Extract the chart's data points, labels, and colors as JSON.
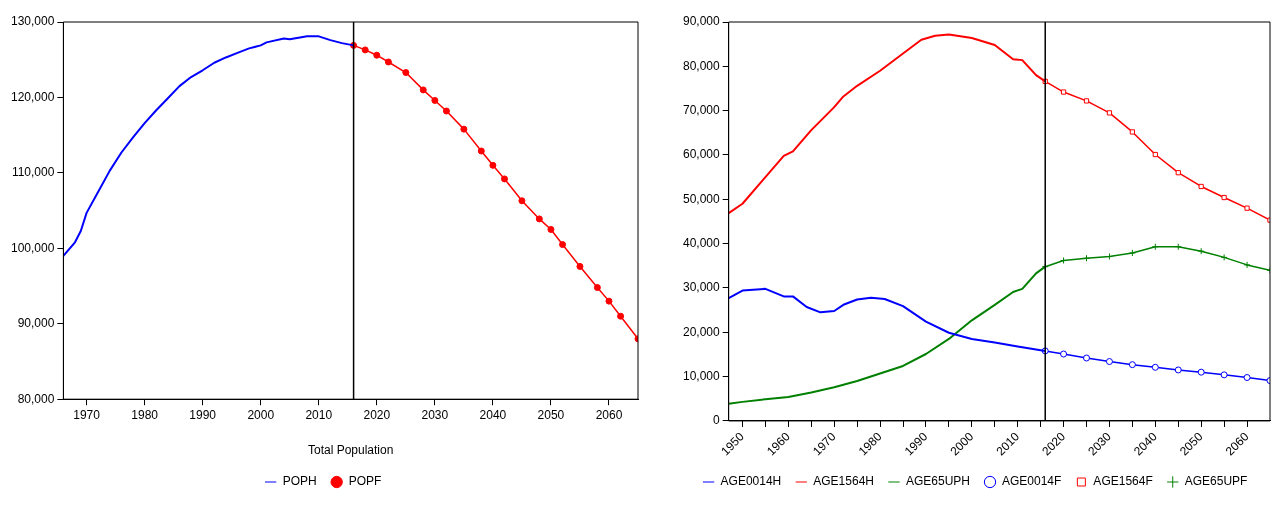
{
  "chart_data": [
    {
      "type": "line",
      "xlabel": "Total Population",
      "xlim": [
        1966,
        2065
      ],
      "xticks": [
        1970,
        1980,
        1990,
        2000,
        2010,
        2020,
        2030,
        2040,
        2050,
        2060
      ],
      "ylim": [
        80000,
        130000
      ],
      "yticks": [
        {
          "value": 80000,
          "label": "80,000"
        },
        {
          "value": 90000,
          "label": "90,000"
        },
        {
          "value": 100000,
          "label": "100,000"
        },
        {
          "value": 110000,
          "label": "110,000"
        },
        {
          "value": 120000,
          "label": "120,000"
        },
        {
          "value": 130000,
          "label": "130,000"
        }
      ],
      "grid": false,
      "legend": "bottom",
      "ref_lines": [
        {
          "axis": "x",
          "value": 2016,
          "color": "#000000"
        }
      ],
      "series": [
        {
          "name": "POPH",
          "color": "#0000ff",
          "marker": "none",
          "x": [
            1966,
            1968,
            1969,
            1970,
            1972,
            1974,
            1976,
            1978,
            1980,
            1982,
            1984,
            1986,
            1988,
            1990,
            1992,
            1994,
            1996,
            1998,
            2000,
            2001,
            2004,
            2005,
            2008,
            2010,
            2012,
            2014,
            2016
          ],
          "values": [
            99000,
            100800,
            102300,
            104700,
            107500,
            110300,
            112700,
            114700,
            116600,
            118300,
            119900,
            121500,
            122700,
            123600,
            124600,
            125300,
            125900,
            126500,
            126900,
            127300,
            127800,
            127700,
            128100,
            128100,
            127600,
            127200,
            126900
          ]
        },
        {
          "name": "POPF",
          "color": "#ff0000",
          "marker": "circle",
          "x": [
            2016,
            2018,
            2020,
            2022,
            2025,
            2028,
            2030,
            2032,
            2035,
            2038,
            2040,
            2042,
            2045,
            2048,
            2050,
            2052,
            2055,
            2058,
            2060,
            2062,
            2065
          ],
          "values": [
            126900,
            126300,
            125600,
            124700,
            123300,
            121000,
            119600,
            118200,
            115800,
            112900,
            111000,
            109200,
            106300,
            103900,
            102500,
            100500,
            97600,
            94800,
            93000,
            91000,
            88000
          ]
        }
      ]
    },
    {
      "type": "line",
      "xlim": [
        1947,
        2065
      ],
      "xticks": [
        1950,
        {
          "value": 1955,
          "label": null
        },
        1960,
        {
          "value": 1965,
          "label": null
        },
        1970,
        {
          "value": 1975,
          "label": null
        },
        1980,
        {
          "value": 1985,
          "label": null
        },
        1990,
        {
          "value": 1995,
          "label": null
        },
        2000,
        {
          "value": 2005,
          "label": null
        },
        2010,
        {
          "value": 2015,
          "label": null
        },
        2020,
        {
          "value": 2025,
          "label": null
        },
        2030,
        {
          "value": 2035,
          "label": null
        },
        2040,
        {
          "value": 2045,
          "label": null
        },
        2050,
        {
          "value": 2055,
          "label": null
        },
        2060
      ],
      "ylim": [
        0,
        90000
      ],
      "yticks": [
        0,
        {
          "value": 10000,
          "label": "10,000"
        },
        {
          "value": 20000,
          "label": "20,000"
        },
        {
          "value": 30000,
          "label": "30,000"
        },
        {
          "value": 40000,
          "label": "40,000"
        },
        {
          "value": 50000,
          "label": "50,000"
        },
        {
          "value": 60000,
          "label": "60,000"
        },
        {
          "value": 70000,
          "label": "70,000"
        },
        {
          "value": 80000,
          "label": "80,000"
        },
        {
          "value": 90000,
          "label": "90,000"
        }
      ],
      "grid": false,
      "legend": "bottom",
      "ref_lines": [
        {
          "axis": "x",
          "value": 2016,
          "color": "#000000"
        }
      ],
      "series": [
        {
          "name": "AGE0014H",
          "color": "#0000ff",
          "marker": "none",
          "x": [
            1947,
            1950,
            1955,
            1959,
            1961,
            1964,
            1967,
            1970,
            1972,
            1975,
            1978,
            1981,
            1985,
            1990,
            1995,
            2000,
            2005,
            2010,
            2016
          ],
          "values": [
            27700,
            29400,
            29800,
            28100,
            28100,
            25700,
            24500,
            24800,
            26200,
            27400,
            27800,
            27500,
            25900,
            22400,
            19900,
            18500,
            17700,
            16800,
            15800
          ]
        },
        {
          "name": "AGE1564H",
          "color": "#ff0000",
          "marker": "none",
          "x": [
            1947,
            1950,
            1955,
            1959,
            1961,
            1965,
            1970,
            1972,
            1975,
            1980,
            1985,
            1989,
            1992,
            1995,
            2000,
            2005,
            2009,
            2011,
            2014,
            2016
          ],
          "values": [
            46900,
            49000,
            55000,
            59800,
            60800,
            65600,
            70800,
            73200,
            75600,
            79000,
            82900,
            86000,
            86900,
            87200,
            86400,
            84800,
            81600,
            81400,
            78000,
            76600
          ]
        },
        {
          "name": "AGE65UPH",
          "color": "#008000",
          "marker": "none",
          "x": [
            1947,
            1950,
            1955,
            1960,
            1965,
            1970,
            1975,
            1980,
            1985,
            1990,
            1995,
            2000,
            2005,
            2009,
            2011,
            2014,
            2016
          ],
          "values": [
            3900,
            4300,
            4900,
            5400,
            6400,
            7600,
            9000,
            10700,
            12400,
            15100,
            18500,
            22700,
            26200,
            29100,
            29800,
            33300,
            34800
          ]
        },
        {
          "name": "AGE0014F",
          "color": "#0000ff",
          "marker": "circle",
          "x": [
            2016,
            2020,
            2025,
            2030,
            2035,
            2040,
            2045,
            2050,
            2055,
            2060,
            2065
          ],
          "values": [
            15800,
            15100,
            14200,
            13400,
            12700,
            12100,
            11500,
            11000,
            10400,
            9800,
            9100
          ]
        },
        {
          "name": "AGE1564F",
          "color": "#ff0000",
          "marker": "square",
          "x": [
            2016,
            2020,
            2025,
            2030,
            2035,
            2040,
            2045,
            2050,
            2055,
            2060,
            2065
          ],
          "values": [
            76600,
            74200,
            72200,
            69500,
            65200,
            60100,
            56000,
            52900,
            50400,
            48000,
            45300
          ]
        },
        {
          "name": "AGE65UPF",
          "color": "#008000",
          "marker": "cross",
          "x": [
            2016,
            2020,
            2025,
            2030,
            2035,
            2040,
            2045,
            2050,
            2055,
            2060,
            2065
          ],
          "values": [
            34800,
            36200,
            36700,
            37100,
            37900,
            39300,
            39300,
            38300,
            36900,
            35200,
            34000
          ]
        }
      ]
    }
  ]
}
